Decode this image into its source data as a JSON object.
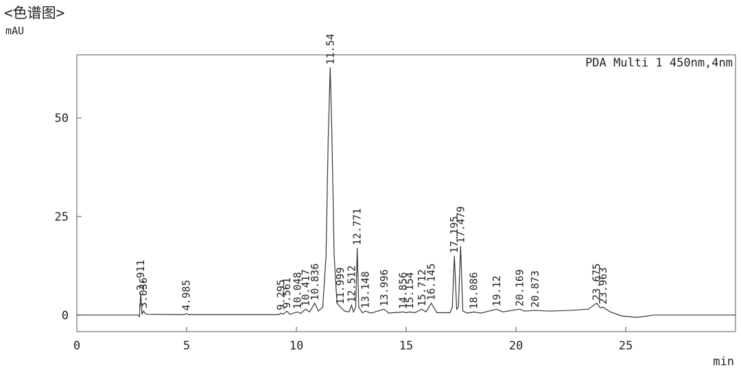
{
  "chart_data": {
    "type": "line",
    "title": "<色谱图>",
    "y_label": "mAU",
    "x_label": "min",
    "annotation": "PDA Multi 1 450nm,4nm",
    "color": "#333333",
    "xlim": [
      0,
      30
    ],
    "xticks": [
      0,
      5,
      10,
      15,
      20,
      25
    ],
    "ylim": [
      -4.2,
      66
    ],
    "yticks": [
      0,
      25,
      50
    ],
    "x": [
      0,
      2.8,
      2.85,
      2.911,
      2.97,
      3.036,
      3.15,
      4.9,
      4.985,
      5.1,
      9.2,
      9.295,
      9.4,
      9.561,
      9.7,
      10.048,
      10.2,
      10.417,
      10.6,
      10.836,
      11.0,
      11.2,
      11.35,
      11.45,
      11.54,
      11.62,
      11.72,
      11.85,
      11.999,
      12.2,
      12.4,
      12.512,
      12.6,
      12.7,
      12.771,
      12.84,
      13.0,
      13.148,
      13.4,
      13.996,
      14.2,
      14.856,
      15.0,
      15.154,
      15.4,
      15.712,
      15.9,
      16.145,
      16.4,
      17.0,
      17.1,
      17.195,
      17.3,
      17.38,
      17.479,
      17.58,
      17.8,
      18.086,
      18.4,
      19.12,
      19.4,
      20.169,
      20.4,
      20.873,
      21.5,
      22.5,
      23.3,
      23.675,
      23.85,
      23.963,
      24.3,
      24.8,
      25.5,
      26.3,
      30
    ],
    "values": [
      0,
      0,
      -0.4,
      5.5,
      0.2,
      1.0,
      0.2,
      0.1,
      0.4,
      0.1,
      0.1,
      0.5,
      0.2,
      1.0,
      0.2,
      0.8,
      0.4,
      1.5,
      0.8,
      3.0,
      1.0,
      2,
      15,
      45,
      62.8,
      45,
      15,
      3,
      2.0,
      1.0,
      0.8,
      2.5,
      0.8,
      2,
      17.0,
      2,
      0.6,
      1.0,
      0.5,
      1.5,
      0.5,
      0.8,
      0.6,
      0.8,
      0.6,
      1.5,
      0.8,
      3.0,
      0.6,
      0.6,
      2,
      15.0,
      1.5,
      2,
      17.5,
      1,
      0.5,
      0.8,
      0.5,
      1.5,
      0.8,
      1.5,
      1.0,
      1.2,
      1.0,
      1.2,
      1.5,
      3.0,
      1.8,
      2.0,
      0.8,
      -0.2,
      -0.6,
      0,
      0
    ],
    "peaks": [
      {
        "time": 2.911,
        "height": 5.5
      },
      {
        "time": 3.036,
        "height": 1.0
      },
      {
        "time": 4.985,
        "height": 0.4
      },
      {
        "time": 9.295,
        "height": 0.5
      },
      {
        "time": 9.561,
        "height": 1.0
      },
      {
        "time": 10.048,
        "height": 0.8
      },
      {
        "time": 10.417,
        "height": 1.5
      },
      {
        "time": 10.836,
        "height": 3.0
      },
      {
        "time": 11.54,
        "height": 62.8
      },
      {
        "time": 11.999,
        "height": 2.0
      },
      {
        "time": 12.512,
        "height": 2.5
      },
      {
        "time": 12.771,
        "height": 17.0
      },
      {
        "time": 13.148,
        "height": 1.0
      },
      {
        "time": 13.996,
        "height": 1.5
      },
      {
        "time": 14.856,
        "height": 0.8
      },
      {
        "time": 15.154,
        "height": 0.8
      },
      {
        "time": 15.712,
        "height": 1.5
      },
      {
        "time": 16.145,
        "height": 3.0
      },
      {
        "time": 17.195,
        "height": 15.0
      },
      {
        "time": 17.479,
        "height": 17.5
      },
      {
        "time": 18.086,
        "height": 0.8
      },
      {
        "time": 19.12,
        "height": 1.5
      },
      {
        "time": 20.169,
        "height": 1.5
      },
      {
        "time": 20.873,
        "height": 1.2
      },
      {
        "time": 23.675,
        "height": 3.0
      },
      {
        "time": 23.963,
        "height": 2.0
      }
    ]
  }
}
